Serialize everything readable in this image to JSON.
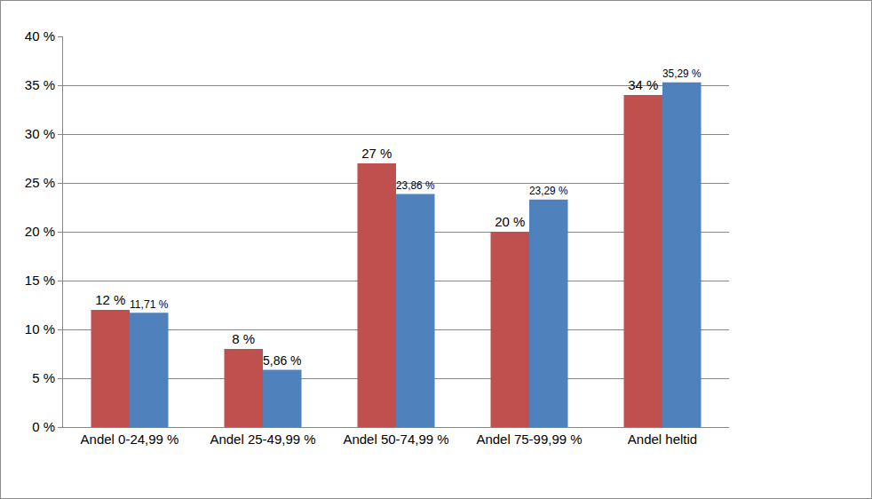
{
  "chart_data": {
    "type": "bar",
    "categories": [
      "Andel 0-24,99 %",
      "Andel 25-49,99 %",
      "Andel 50-74,99 %",
      "Andel 75-99,99 %",
      "Andel heltid"
    ],
    "series": [
      {
        "color": "#c0504d",
        "values": [
          12,
          8,
          27,
          20,
          34
        ],
        "value_labels": [
          "12 %",
          "8 %",
          "27 %",
          "20 %",
          "34 %"
        ]
      },
      {
        "color": "#4f81bd",
        "values": [
          11.71,
          5.86,
          23.86,
          23.29,
          35.29
        ],
        "value_labels": [
          "11,71 %",
          "5,86 %",
          "23,86 %",
          "23,29 %",
          "35,29 %"
        ]
      }
    ],
    "ylim": [
      0,
      40
    ],
    "yticks": [
      {
        "value": 0,
        "label": "0 %"
      },
      {
        "value": 5,
        "label": "5 %"
      },
      {
        "value": 10,
        "label": "10 %"
      },
      {
        "value": 15,
        "label": "15 %"
      },
      {
        "value": 20,
        "label": "20 %"
      },
      {
        "value": 25,
        "label": "25 %"
      },
      {
        "value": 30,
        "label": "30 %"
      },
      {
        "value": 35,
        "label": "35 %"
      },
      {
        "value": 40,
        "label": "40 %"
      }
    ],
    "grid": true,
    "data_labels": true
  }
}
